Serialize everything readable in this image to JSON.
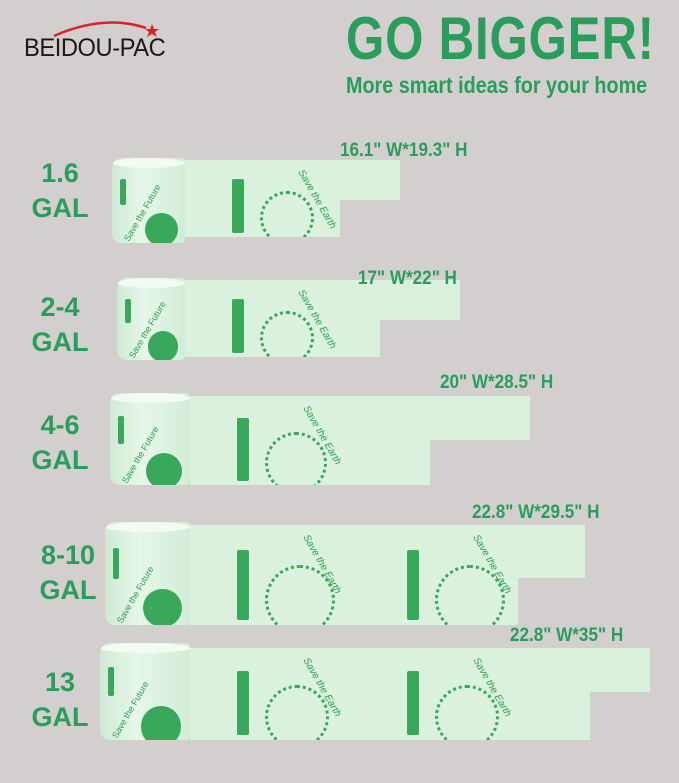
{
  "brand": {
    "name": "BEIDOU-PAC",
    "accent": "#d8232a"
  },
  "header": {
    "title": "GO BIGGER!",
    "subtitle": "More smart ideas for your home"
  },
  "colors": {
    "background": "#d3cfcf",
    "green": "#2a9d5c",
    "bag": "#d9f1dd"
  },
  "print": {
    "earth": "Save the Earth",
    "future": "Save the Future"
  },
  "sizes": [
    {
      "capacity": "1.6",
      "unit": "GAL",
      "dimensions": "16.1\" W*19.3\" H"
    },
    {
      "capacity": "2-4",
      "unit": "GAL",
      "dimensions": "17\" W*22\" H"
    },
    {
      "capacity": "4-6",
      "unit": "GAL",
      "dimensions": "20\" W*28.5\" H"
    },
    {
      "capacity": "8-10",
      "unit": "GAL",
      "dimensions": "22.8\" W*29.5\" H"
    },
    {
      "capacity": "13",
      "unit": "GAL",
      "dimensions": "22.8\" W*35\" H"
    }
  ]
}
